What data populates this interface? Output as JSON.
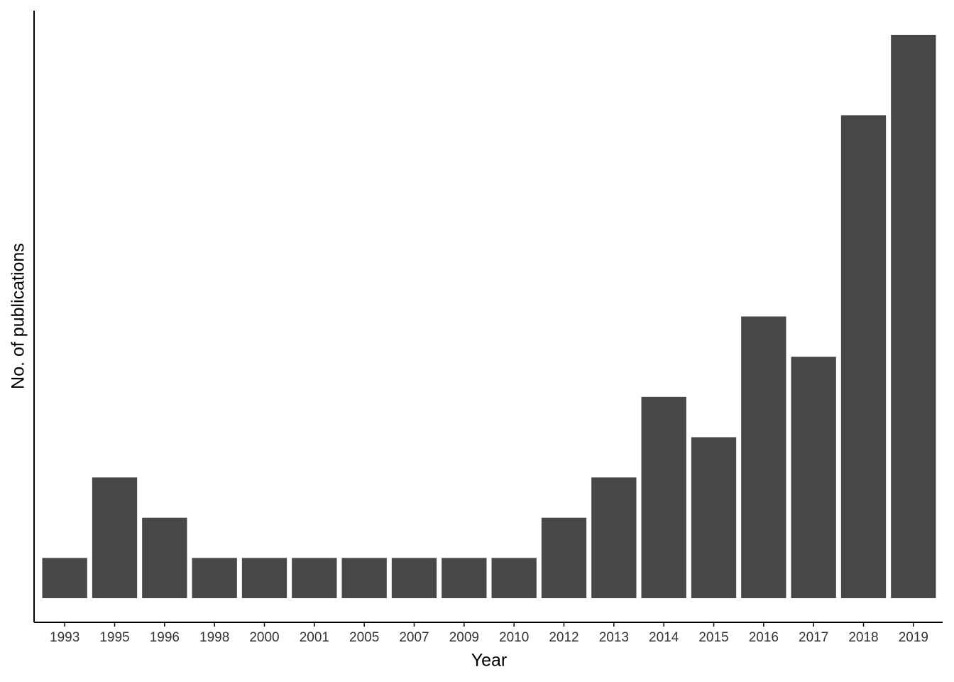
{
  "chart_data": {
    "type": "bar",
    "x_label": "Year",
    "y_label": "No. of publications",
    "categories": [
      "1993",
      "1995",
      "1996",
      "1998",
      "2000",
      "2001",
      "2005",
      "2007",
      "2009",
      "2010",
      "2012",
      "2013",
      "2014",
      "2015",
      "2016",
      "2017",
      "2018",
      "2019"
    ],
    "values": [
      1,
      3,
      2,
      1,
      1,
      1,
      1,
      1,
      1,
      1,
      2,
      3,
      5,
      4,
      7,
      6,
      12,
      14
    ],
    "color": "#474747",
    "ylim": [
      -0.6,
      14.6
    ]
  }
}
